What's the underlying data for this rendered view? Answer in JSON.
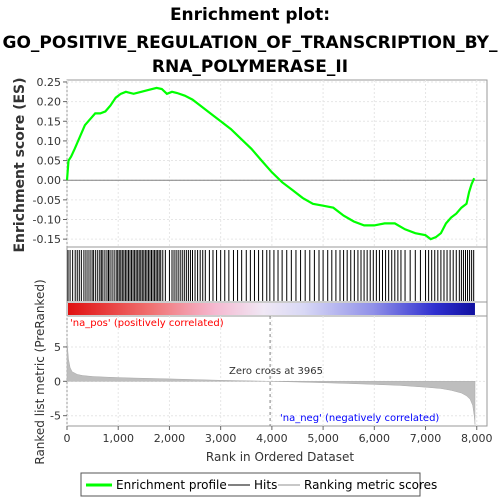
{
  "title_lines": [
    "Enrichment plot:",
    "GO_POSITIVE_REGULATION_OF_TRANSCRIPTION_BY_",
    "RNA_POLYMERASE_II"
  ],
  "colors": {
    "es_curve": "#00ff00",
    "hits": "#000000",
    "ranked_fill": "#bebebe",
    "pos_label": "#ff0000",
    "neg_label": "#0000ff",
    "zero_line": "#808080",
    "grid": "#e6e6e6"
  },
  "chart_data": [
    {
      "type": "line",
      "name": "enrichment-plot",
      "ylabel": "Enrichment score (ES)",
      "ylim": [
        -0.17,
        0.255
      ],
      "yticks": [
        "0.25",
        "0.20",
        "0.15",
        "0.10",
        "0.05",
        "0.00",
        "-0.05",
        "-0.10",
        "-0.15"
      ],
      "ytick_values": [
        0.25,
        0.2,
        0.15,
        0.1,
        0.05,
        0.0,
        -0.05,
        -0.1,
        -0.15
      ],
      "xlim": [
        0,
        8200
      ],
      "grid": true,
      "series": [
        {
          "x": [
            0,
            30,
            80,
            150,
            250,
            350,
            450,
            550,
            650,
            750,
            850,
            950,
            1050,
            1150,
            1300,
            1450,
            1600,
            1750,
            1850,
            1950,
            2050,
            2150,
            2300,
            2450,
            2600,
            2800,
            3000,
            3200,
            3400,
            3600,
            3800,
            4000,
            4200,
            4400,
            4600,
            4800,
            5000,
            5200,
            5400,
            5600,
            5800,
            6000,
            6200,
            6400,
            6600,
            6800,
            7000,
            7100,
            7200,
            7300,
            7400,
            7500,
            7600,
            7700,
            7800,
            7850,
            7900,
            7950
          ],
          "values": [
            0.0,
            0.05,
            0.06,
            0.08,
            0.11,
            0.14,
            0.155,
            0.17,
            0.17,
            0.175,
            0.19,
            0.21,
            0.22,
            0.225,
            0.22,
            0.225,
            0.23,
            0.235,
            0.232,
            0.22,
            0.225,
            0.222,
            0.215,
            0.205,
            0.19,
            0.17,
            0.15,
            0.13,
            0.105,
            0.08,
            0.05,
            0.02,
            -0.005,
            -0.025,
            -0.045,
            -0.06,
            -0.065,
            -0.07,
            -0.09,
            -0.105,
            -0.115,
            -0.115,
            -0.11,
            -0.11,
            -0.125,
            -0.135,
            -0.14,
            -0.15,
            -0.145,
            -0.135,
            -0.11,
            -0.095,
            -0.085,
            -0.07,
            -0.06,
            -0.03,
            -0.01,
            0.005
          ]
        }
      ]
    },
    {
      "type": "hits",
      "name": "hits-barcode",
      "hit_positions": [
        20,
        60,
        110,
        160,
        200,
        240,
        280,
        330,
        370,
        410,
        450,
        490,
        520,
        560,
        600,
        640,
        670,
        700,
        740,
        780,
        810,
        840,
        880,
        920,
        960,
        990,
        1020,
        1050,
        1080,
        1110,
        1140,
        1170,
        1200,
        1230,
        1260,
        1290,
        1320,
        1350,
        1380,
        1410,
        1440,
        1470,
        1500,
        1530,
        1560,
        1590,
        1620,
        1650,
        1680,
        1710,
        1740,
        1770,
        1800,
        1830,
        1870,
        1920,
        2000,
        2050,
        2090,
        2130,
        2170,
        2210,
        2250,
        2290,
        2330,
        2370,
        2410,
        2450,
        2500,
        2550,
        2600,
        2650,
        2700,
        2780,
        2850,
        2920,
        3000,
        3080,
        3160,
        3250,
        3330,
        3410,
        3500,
        3580,
        3660,
        3740,
        3820,
        3900,
        3960,
        4040,
        4120,
        4200,
        4290,
        4380,
        4470,
        4560,
        4650,
        4740,
        4830,
        4920,
        5000,
        5090,
        5170,
        5250,
        5330,
        5400,
        5470,
        5540,
        5610,
        5680,
        5740,
        5800,
        5860,
        5920,
        5980,
        6040,
        6100,
        6160,
        6220,
        6280,
        6340,
        6400,
        6460,
        6520,
        6600,
        6700,
        6800,
        6900,
        7000,
        7060,
        7120,
        7180,
        7240,
        7300,
        7360,
        7420,
        7480,
        7540,
        7600,
        7660,
        7700,
        7740,
        7780,
        7820,
        7860,
        7900,
        7940
      ]
    },
    {
      "type": "area",
      "name": "ranked-list-metric",
      "ylabel": "Ranked list metric (PreRanked)",
      "xlabel": "Rank in Ordered Dataset",
      "ylim": [
        -6.5,
        9.5
      ],
      "yticks": [
        "5",
        "0",
        "-5"
      ],
      "ytick_values": [
        5,
        0,
        -5
      ],
      "xticks": [
        "0",
        "1,000",
        "2,000",
        "3,000",
        "4,000",
        "5,000",
        "6,000",
        "7,000",
        "8,000"
      ],
      "xtick_values": [
        0,
        1000,
        2000,
        3000,
        4000,
        5000,
        6000,
        7000,
        8000
      ],
      "xlim": [
        0,
        8200
      ],
      "x": [
        0,
        10,
        30,
        60,
        100,
        200,
        300,
        500,
        800,
        1200,
        1600,
        2000,
        2500,
        3000,
        3500,
        3965,
        4500,
        5000,
        5500,
        6000,
        6500,
        7000,
        7300,
        7500,
        7700,
        7800,
        7870,
        7920,
        7950,
        7965
      ],
      "values": [
        6.2,
        5.0,
        3.2,
        2.0,
        1.4,
        1.0,
        0.85,
        0.7,
        0.6,
        0.5,
        0.42,
        0.35,
        0.25,
        0.15,
        0.07,
        0.0,
        -0.1,
        -0.2,
        -0.32,
        -0.45,
        -0.6,
        -0.85,
        -1.05,
        -1.3,
        -1.7,
        -2.1,
        -2.6,
        -3.5,
        -5.0,
        -6.3
      ],
      "zero_cross_label": "Zero cross at 3965",
      "zero_cross": 3965,
      "pos_label": "'na_pos' (positively correlated)",
      "neg_label": "'na_neg' (negatively correlated)"
    }
  ],
  "legend": {
    "items": [
      {
        "label": "Enrichment profile",
        "color": "#00ff00"
      },
      {
        "label": "Hits",
        "color": "#808080"
      },
      {
        "label": "Ranking metric scores",
        "color": "#c8c8c8"
      }
    ]
  }
}
